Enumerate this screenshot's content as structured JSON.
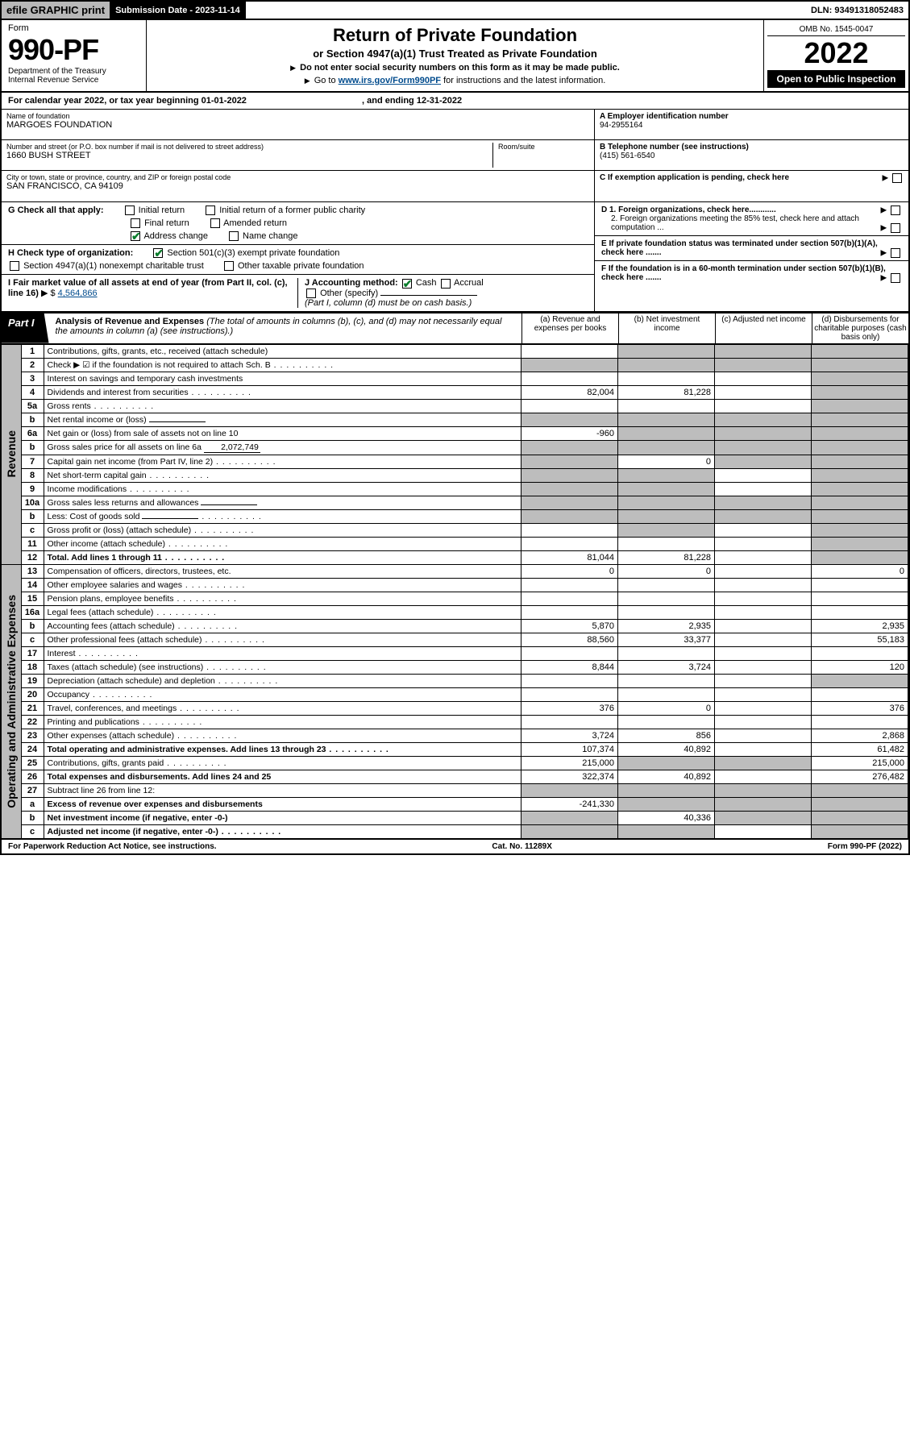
{
  "topbar": {
    "efile": "efile GRAPHIC print",
    "sub_label": "Submission Date - 2023-11-14",
    "dln": "DLN: 93491318052483"
  },
  "header": {
    "form_word": "Form",
    "form_no": "990-PF",
    "dept": "Department of the Treasury\nInternal Revenue Service",
    "title": "Return of Private Foundation",
    "subtitle": "or Section 4947(a)(1) Trust Treated as Private Foundation",
    "instr1": "Do not enter social security numbers on this form as it may be made public.",
    "instr2_pre": "Go to ",
    "instr2_link": "www.irs.gov/Form990PF",
    "instr2_post": " for instructions and the latest information.",
    "omb": "OMB No. 1545-0047",
    "year": "2022",
    "open": "Open to Public Inspection"
  },
  "cal": {
    "text_pre": "For calendar year 2022, or tax year beginning ",
    "begin": "01-01-2022",
    "mid": " , and ending ",
    "end": "12-31-2022"
  },
  "id": {
    "name_lbl": "Name of foundation",
    "name": "MARGOES FOUNDATION",
    "addr_lbl": "Number and street (or P.O. box number if mail is not delivered to street address)",
    "addr": "1660 BUSH STREET",
    "room_lbl": "Room/suite",
    "city_lbl": "City or town, state or province, country, and ZIP or foreign postal code",
    "city": "SAN FRANCISCO, CA  94109",
    "A_lbl": "A Employer identification number",
    "A": "94-2955164",
    "B_lbl": "B Telephone number (see instructions)",
    "B": "(415) 561-6540",
    "C": "C If exemption application is pending, check here",
    "D1": "D 1. Foreign organizations, check here............",
    "D2": "2. Foreign organizations meeting the 85% test, check here and attach computation ...",
    "E": "E If private foundation status was terminated under section 507(b)(1)(A), check here .......",
    "F": "F If the foundation is in a 60-month termination under section 507(b)(1)(B), check here ......."
  },
  "G": {
    "label": "G Check all that apply:",
    "opts": [
      "Initial return",
      "Initial return of a former public charity",
      "Final return",
      "Amended return",
      "Address change",
      "Name change"
    ],
    "checked": [
      false,
      false,
      false,
      false,
      true,
      false
    ]
  },
  "H": {
    "label": "H Check type of organization:",
    "o1": "Section 501(c)(3) exempt private foundation",
    "o2": "Section 4947(a)(1) nonexempt charitable trust",
    "o3": "Other taxable private foundation"
  },
  "I": {
    "label": "I Fair market value of all assets at end of year (from Part II, col. (c), line 16)",
    "value": "4,564,866"
  },
  "J": {
    "label": "J Accounting method:",
    "o1": "Cash",
    "o2": "Accrual",
    "o3": "Other (specify)",
    "note": "(Part I, column (d) must be on cash basis.)"
  },
  "part1": {
    "label": "Part I",
    "title": "Analysis of Revenue and Expenses",
    "note": "(The total of amounts in columns (b), (c), and (d) may not necessarily equal the amounts in column (a) (see instructions).)",
    "cols": {
      "a": "(a) Revenue and expenses per books",
      "b": "(b) Net investment income",
      "c": "(c) Adjusted net income",
      "d": "(d) Disbursements for charitable purposes (cash basis only)"
    }
  },
  "side_labels": {
    "rev": "Revenue",
    "exp": "Operating and Administrative Expenses"
  },
  "rows": [
    {
      "n": "1",
      "lab": "Contributions, gifts, grants, etc., received (attach schedule)",
      "a": "",
      "b": "G",
      "c": "G",
      "d": "G"
    },
    {
      "n": "2",
      "lab": "Check ▶ ☑ if the foundation is not required to attach Sch. B",
      "dots": true,
      "a": "G",
      "b": "G",
      "c": "G",
      "d": "G"
    },
    {
      "n": "3",
      "lab": "Interest on savings and temporary cash investments",
      "a": "",
      "b": "",
      "c": "",
      "d": "G"
    },
    {
      "n": "4",
      "lab": "Dividends and interest from securities",
      "dots": true,
      "a": "82,004",
      "b": "81,228",
      "c": "",
      "d": "G"
    },
    {
      "n": "5a",
      "lab": "Gross rents",
      "dots": true,
      "a": "",
      "b": "",
      "c": "",
      "d": "G"
    },
    {
      "n": "b",
      "lab": "Net rental income or (loss)",
      "inline": "",
      "a": "G",
      "b": "G",
      "c": "G",
      "d": "G"
    },
    {
      "n": "6a",
      "lab": "Net gain or (loss) from sale of assets not on line 10",
      "a": "-960",
      "b": "G",
      "c": "G",
      "d": "G"
    },
    {
      "n": "b",
      "lab": "Gross sales price for all assets on line 6a",
      "inline": "2,072,749",
      "a": "G",
      "b": "G",
      "c": "G",
      "d": "G"
    },
    {
      "n": "7",
      "lab": "Capital gain net income (from Part IV, line 2)",
      "dots": true,
      "a": "G",
      "b": "0",
      "c": "G",
      "d": "G"
    },
    {
      "n": "8",
      "lab": "Net short-term capital gain",
      "dots": true,
      "a": "G",
      "b": "G",
      "c": "",
      "d": "G"
    },
    {
      "n": "9",
      "lab": "Income modifications",
      "dots": true,
      "a": "G",
      "b": "G",
      "c": "",
      "d": "G"
    },
    {
      "n": "10a",
      "lab": "Gross sales less returns and allowances",
      "inline": "",
      "a": "G",
      "b": "G",
      "c": "G",
      "d": "G"
    },
    {
      "n": "b",
      "lab": "Less: Cost of goods sold",
      "dots": true,
      "inline": "",
      "a": "G",
      "b": "G",
      "c": "G",
      "d": "G"
    },
    {
      "n": "c",
      "lab": "Gross profit or (loss) (attach schedule)",
      "dots": true,
      "a": "",
      "b": "G",
      "c": "",
      "d": "G"
    },
    {
      "n": "11",
      "lab": "Other income (attach schedule)",
      "dots": true,
      "a": "",
      "b": "",
      "c": "",
      "d": "G"
    },
    {
      "n": "12",
      "lab": "Total. Add lines 1 through 11",
      "dots": true,
      "bold": true,
      "a": "81,044",
      "b": "81,228",
      "c": "",
      "d": "G"
    },
    {
      "n": "13",
      "lab": "Compensation of officers, directors, trustees, etc.",
      "a": "0",
      "b": "0",
      "c": "",
      "d": "0"
    },
    {
      "n": "14",
      "lab": "Other employee salaries and wages",
      "dots": true,
      "a": "",
      "b": "",
      "c": "",
      "d": ""
    },
    {
      "n": "15",
      "lab": "Pension plans, employee benefits",
      "dots": true,
      "a": "",
      "b": "",
      "c": "",
      "d": ""
    },
    {
      "n": "16a",
      "lab": "Legal fees (attach schedule)",
      "dots": true,
      "a": "",
      "b": "",
      "c": "",
      "d": ""
    },
    {
      "n": "b",
      "lab": "Accounting fees (attach schedule)",
      "dots": true,
      "a": "5,870",
      "b": "2,935",
      "c": "",
      "d": "2,935"
    },
    {
      "n": "c",
      "lab": "Other professional fees (attach schedule)",
      "dots": true,
      "a": "88,560",
      "b": "33,377",
      "c": "",
      "d": "55,183"
    },
    {
      "n": "17",
      "lab": "Interest",
      "dots": true,
      "a": "",
      "b": "",
      "c": "",
      "d": ""
    },
    {
      "n": "18",
      "lab": "Taxes (attach schedule) (see instructions)",
      "dots": true,
      "a": "8,844",
      "b": "3,724",
      "c": "",
      "d": "120"
    },
    {
      "n": "19",
      "lab": "Depreciation (attach schedule) and depletion",
      "dots": true,
      "a": "",
      "b": "",
      "c": "",
      "d": "G"
    },
    {
      "n": "20",
      "lab": "Occupancy",
      "dots": true,
      "a": "",
      "b": "",
      "c": "",
      "d": ""
    },
    {
      "n": "21",
      "lab": "Travel, conferences, and meetings",
      "dots": true,
      "a": "376",
      "b": "0",
      "c": "",
      "d": "376"
    },
    {
      "n": "22",
      "lab": "Printing and publications",
      "dots": true,
      "a": "",
      "b": "",
      "c": "",
      "d": ""
    },
    {
      "n": "23",
      "lab": "Other expenses (attach schedule)",
      "dots": true,
      "a": "3,724",
      "b": "856",
      "c": "",
      "d": "2,868"
    },
    {
      "n": "24",
      "lab": "Total operating and administrative expenses. Add lines 13 through 23",
      "dots": true,
      "bold": true,
      "a": "107,374",
      "b": "40,892",
      "c": "",
      "d": "61,482"
    },
    {
      "n": "25",
      "lab": "Contributions, gifts, grants paid",
      "dots": true,
      "a": "215,000",
      "b": "G",
      "c": "G",
      "d": "215,000"
    },
    {
      "n": "26",
      "lab": "Total expenses and disbursements. Add lines 24 and 25",
      "bold": true,
      "a": "322,374",
      "b": "40,892",
      "c": "",
      "d": "276,482"
    },
    {
      "n": "27",
      "lab": "Subtract line 26 from line 12:",
      "a": "G",
      "b": "G",
      "c": "G",
      "d": "G"
    },
    {
      "n": "a",
      "lab": "Excess of revenue over expenses and disbursements",
      "bold": true,
      "a": "-241,330",
      "b": "G",
      "c": "G",
      "d": "G"
    },
    {
      "n": "b",
      "lab": "Net investment income (if negative, enter -0-)",
      "bold": true,
      "a": "G",
      "b": "40,336",
      "c": "G",
      "d": "G"
    },
    {
      "n": "c",
      "lab": "Adjusted net income (if negative, enter -0-)",
      "dots": true,
      "bold": true,
      "a": "G",
      "b": "G",
      "c": "",
      "d": "G"
    }
  ],
  "footer": {
    "l": "For Paperwork Reduction Act Notice, see instructions.",
    "m": "Cat. No. 11289X",
    "r": "Form 990-PF (2022)"
  }
}
